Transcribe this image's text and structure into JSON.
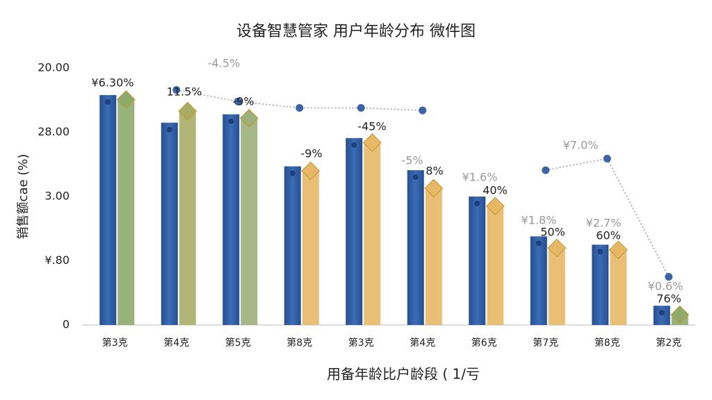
{
  "chart_data": {
    "type": "bar",
    "title": "设备智慧管家 用户年龄分布 微件图",
    "y_label": "销售额cae (%)",
    "x_label": "用备年龄比户龄段 ( 1/亏",
    "categories": [
      "第3克",
      "第4克",
      "第5克",
      "第8克",
      "第3克",
      "第4克",
      "第6克",
      "第7克",
      "第8克",
      "第2克"
    ],
    "series": [
      {
        "color": "#2f5fa8",
        "values": [
          3.58,
          3.15,
          3.28,
          2.47,
          2.91,
          2.41,
          2.0,
          1.38,
          1.25,
          0.3
        ]
      },
      {
        "color": "#e2b45c",
        "colors": [
          "#8cab6b",
          "#a8ad66",
          "#9cb07a",
          "#e6b866",
          "#e6b866",
          "#e6b866",
          "#e6b866",
          "#e6b866",
          "#e6b866",
          "#8cab6b"
        ],
        "values": [
          3.51,
          3.33,
          3.22,
          2.4,
          2.84,
          2.13,
          1.85,
          1.2,
          1.17,
          0.16
        ]
      },
      {
        "type": "line",
        "color": "#3b64a8",
        "values": [
          null,
          3.66,
          3.48,
          3.38,
          3.38,
          3.34,
          null,
          2.41,
          2.59,
          0.75
        ]
      }
    ],
    "annotations": [
      "¥6.30%",
      "11.5%",
      "-9%",
      "-9%",
      "-45%",
      "8%",
      "40%",
      "50%",
      "60%",
      "76%",
      "-4.5%",
      "-5%",
      "¥1.6%",
      "¥1.8%",
      "¥2.7%",
      "¥7.0%",
      "¥0.6%"
    ],
    "ylim": [
      0,
      4
    ],
    "yticks": [
      {
        "value": 0,
        "label": "0"
      },
      {
        "value": 1,
        "label": "¥.80"
      },
      {
        "value": 2,
        "label": "3.00"
      },
      {
        "value": 3,
        "label": "28.00"
      },
      {
        "value": 4,
        "label": "20.00"
      }
    ],
    "grid": false
  }
}
